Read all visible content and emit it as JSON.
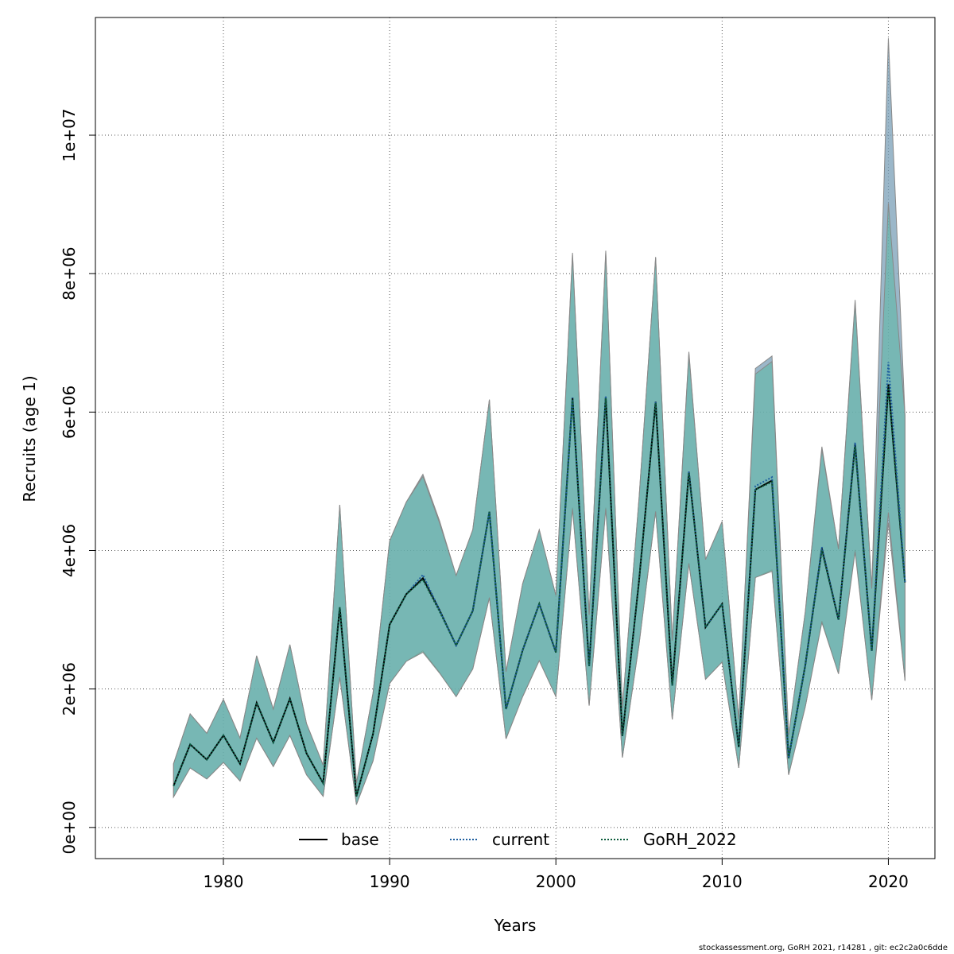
{
  "chart_data": {
    "type": "area",
    "xlabel": "Years",
    "ylabel": "Recruits (age 1)",
    "xlim": [
      1972.3,
      2022.8
    ],
    "ylim": [
      -450000,
      11700000
    ],
    "xticks": [
      1980,
      1990,
      2000,
      2010,
      2020
    ],
    "yticks": [
      0,
      2000000,
      4000000,
      6000000,
      8000000,
      10000000
    ],
    "ytick_labels": [
      "0e+00",
      "2e+06",
      "4e+06",
      "6e+06",
      "8e+06",
      "1e+07"
    ],
    "grid": true,
    "legend_position": "bottom",
    "x": [
      1977,
      1978,
      1979,
      1980,
      1981,
      1982,
      1983,
      1984,
      1985,
      1986,
      1987,
      1988,
      1989,
      1990,
      1991,
      1992,
      1993,
      1994,
      1995,
      1996,
      1997,
      1998,
      1999,
      2000,
      2001,
      2002,
      2003,
      2004,
      2005,
      2006,
      2007,
      2008,
      2009,
      2010,
      2011,
      2012,
      2013,
      2014,
      2015,
      2016,
      2017,
      2018,
      2019,
      2020,
      2021
    ],
    "series": [
      {
        "name": "base",
        "line_style": "solid",
        "color": "#000000",
        "band_color": "#7a9fb7",
        "values": [
          600000,
          1200000,
          980000,
          1330000,
          920000,
          1800000,
          1230000,
          1860000,
          1070000,
          640000,
          3180000,
          450000,
          1350000,
          2930000,
          3370000,
          3600000,
          3140000,
          2630000,
          3130000,
          4560000,
          1710000,
          2560000,
          3230000,
          2530000,
          6210000,
          2330000,
          6220000,
          1320000,
          3560000,
          6150000,
          2050000,
          5140000,
          2890000,
          3230000,
          1160000,
          4880000,
          5010000,
          1000000,
          2340000,
          4030000,
          3000000,
          5540000,
          2550000,
          6400000,
          3540000
        ],
        "lower": [
          440000,
          860000,
          700000,
          940000,
          670000,
          1290000,
          880000,
          1330000,
          760000,
          450000,
          2170000,
          330000,
          960000,
          2080000,
          2400000,
          2550000,
          2240000,
          1890000,
          2290000,
          3320000,
          1280000,
          1890000,
          2410000,
          1890000,
          4620000,
          1760000,
          4620000,
          1010000,
          2640000,
          4570000,
          1560000,
          3820000,
          2140000,
          2390000,
          860000,
          3610000,
          3720000,
          760000,
          1740000,
          2980000,
          2220000,
          4010000,
          1840000,
          4400000,
          2120000
        ],
        "upper": [
          920000,
          1640000,
          1360000,
          1850000,
          1290000,
          2480000,
          1710000,
          2640000,
          1500000,
          900000,
          4660000,
          640000,
          1940000,
          4140000,
          4700000,
          5100000,
          4430000,
          3640000,
          4300000,
          6180000,
          2250000,
          3520000,
          4300000,
          3350000,
          8300000,
          3070000,
          8330000,
          1730000,
          4750000,
          8240000,
          2700000,
          6870000,
          3870000,
          4420000,
          1560000,
          6630000,
          6810000,
          1340000,
          3110000,
          5500000,
          4020000,
          7620000,
          3450000,
          11400000,
          5950000
        ]
      },
      {
        "name": "current",
        "line_style": "dotted",
        "color": "#1f5fa0",
        "band_color": "#7a9fb7",
        "values": [
          600000,
          1200000,
          980000,
          1330000,
          920000,
          1800000,
          1230000,
          1860000,
          1070000,
          640000,
          3180000,
          450000,
          1350000,
          2930000,
          3370000,
          3650000,
          3140000,
          2630000,
          3130000,
          4560000,
          1710000,
          2560000,
          3230000,
          2530000,
          6210000,
          2330000,
          6230000,
          1320000,
          3560000,
          6150000,
          2050000,
          5140000,
          2890000,
          3230000,
          1160000,
          4930000,
          5060000,
          1000000,
          2340000,
          4050000,
          3000000,
          5560000,
          2550000,
          6720000,
          3540000
        ]
      },
      {
        "name": "GoRH_2022",
        "line_style": "dotted",
        "color": "#0c5c3c",
        "band_color": "#5fb8a6",
        "values": [
          600000,
          1200000,
          980000,
          1330000,
          920000,
          1800000,
          1230000,
          1860000,
          1070000,
          640000,
          3180000,
          450000,
          1350000,
          2930000,
          3370000,
          3580000,
          3120000,
          2630000,
          3130000,
          4560000,
          1710000,
          2560000,
          3230000,
          2530000,
          6180000,
          2330000,
          6200000,
          1320000,
          3560000,
          6130000,
          2050000,
          5120000,
          2890000,
          3230000,
          1160000,
          4880000,
          4990000,
          1000000,
          2340000,
          4000000,
          3000000,
          5500000,
          2550000,
          6370000,
          3540000
        ],
        "lower": [
          440000,
          860000,
          700000,
          940000,
          670000,
          1290000,
          880000,
          1330000,
          760000,
          450000,
          2170000,
          330000,
          960000,
          2080000,
          2400000,
          2530000,
          2230000,
          1890000,
          2290000,
          3320000,
          1280000,
          1890000,
          2410000,
          1890000,
          4600000,
          1760000,
          4600000,
          1010000,
          2640000,
          4560000,
          1560000,
          3810000,
          2140000,
          2390000,
          860000,
          3610000,
          3700000,
          760000,
          1740000,
          2960000,
          2220000,
          3980000,
          1840000,
          4550000,
          2120000
        ],
        "upper": [
          920000,
          1640000,
          1360000,
          1850000,
          1290000,
          2480000,
          1710000,
          2640000,
          1500000,
          900000,
          4660000,
          640000,
          1940000,
          4140000,
          4700000,
          5070000,
          4400000,
          3640000,
          4300000,
          6180000,
          2250000,
          3520000,
          4300000,
          3350000,
          8270000,
          3070000,
          8300000,
          1730000,
          4750000,
          8230000,
          2700000,
          6840000,
          3870000,
          4420000,
          1560000,
          6550000,
          6730000,
          1340000,
          3110000,
          5460000,
          4020000,
          7580000,
          3450000,
          9020000,
          5950000
        ]
      }
    ]
  },
  "footer": {
    "text": "stockassessment.org, GoRH  2021, r14281 , git: ec2c2a0c6dde"
  }
}
